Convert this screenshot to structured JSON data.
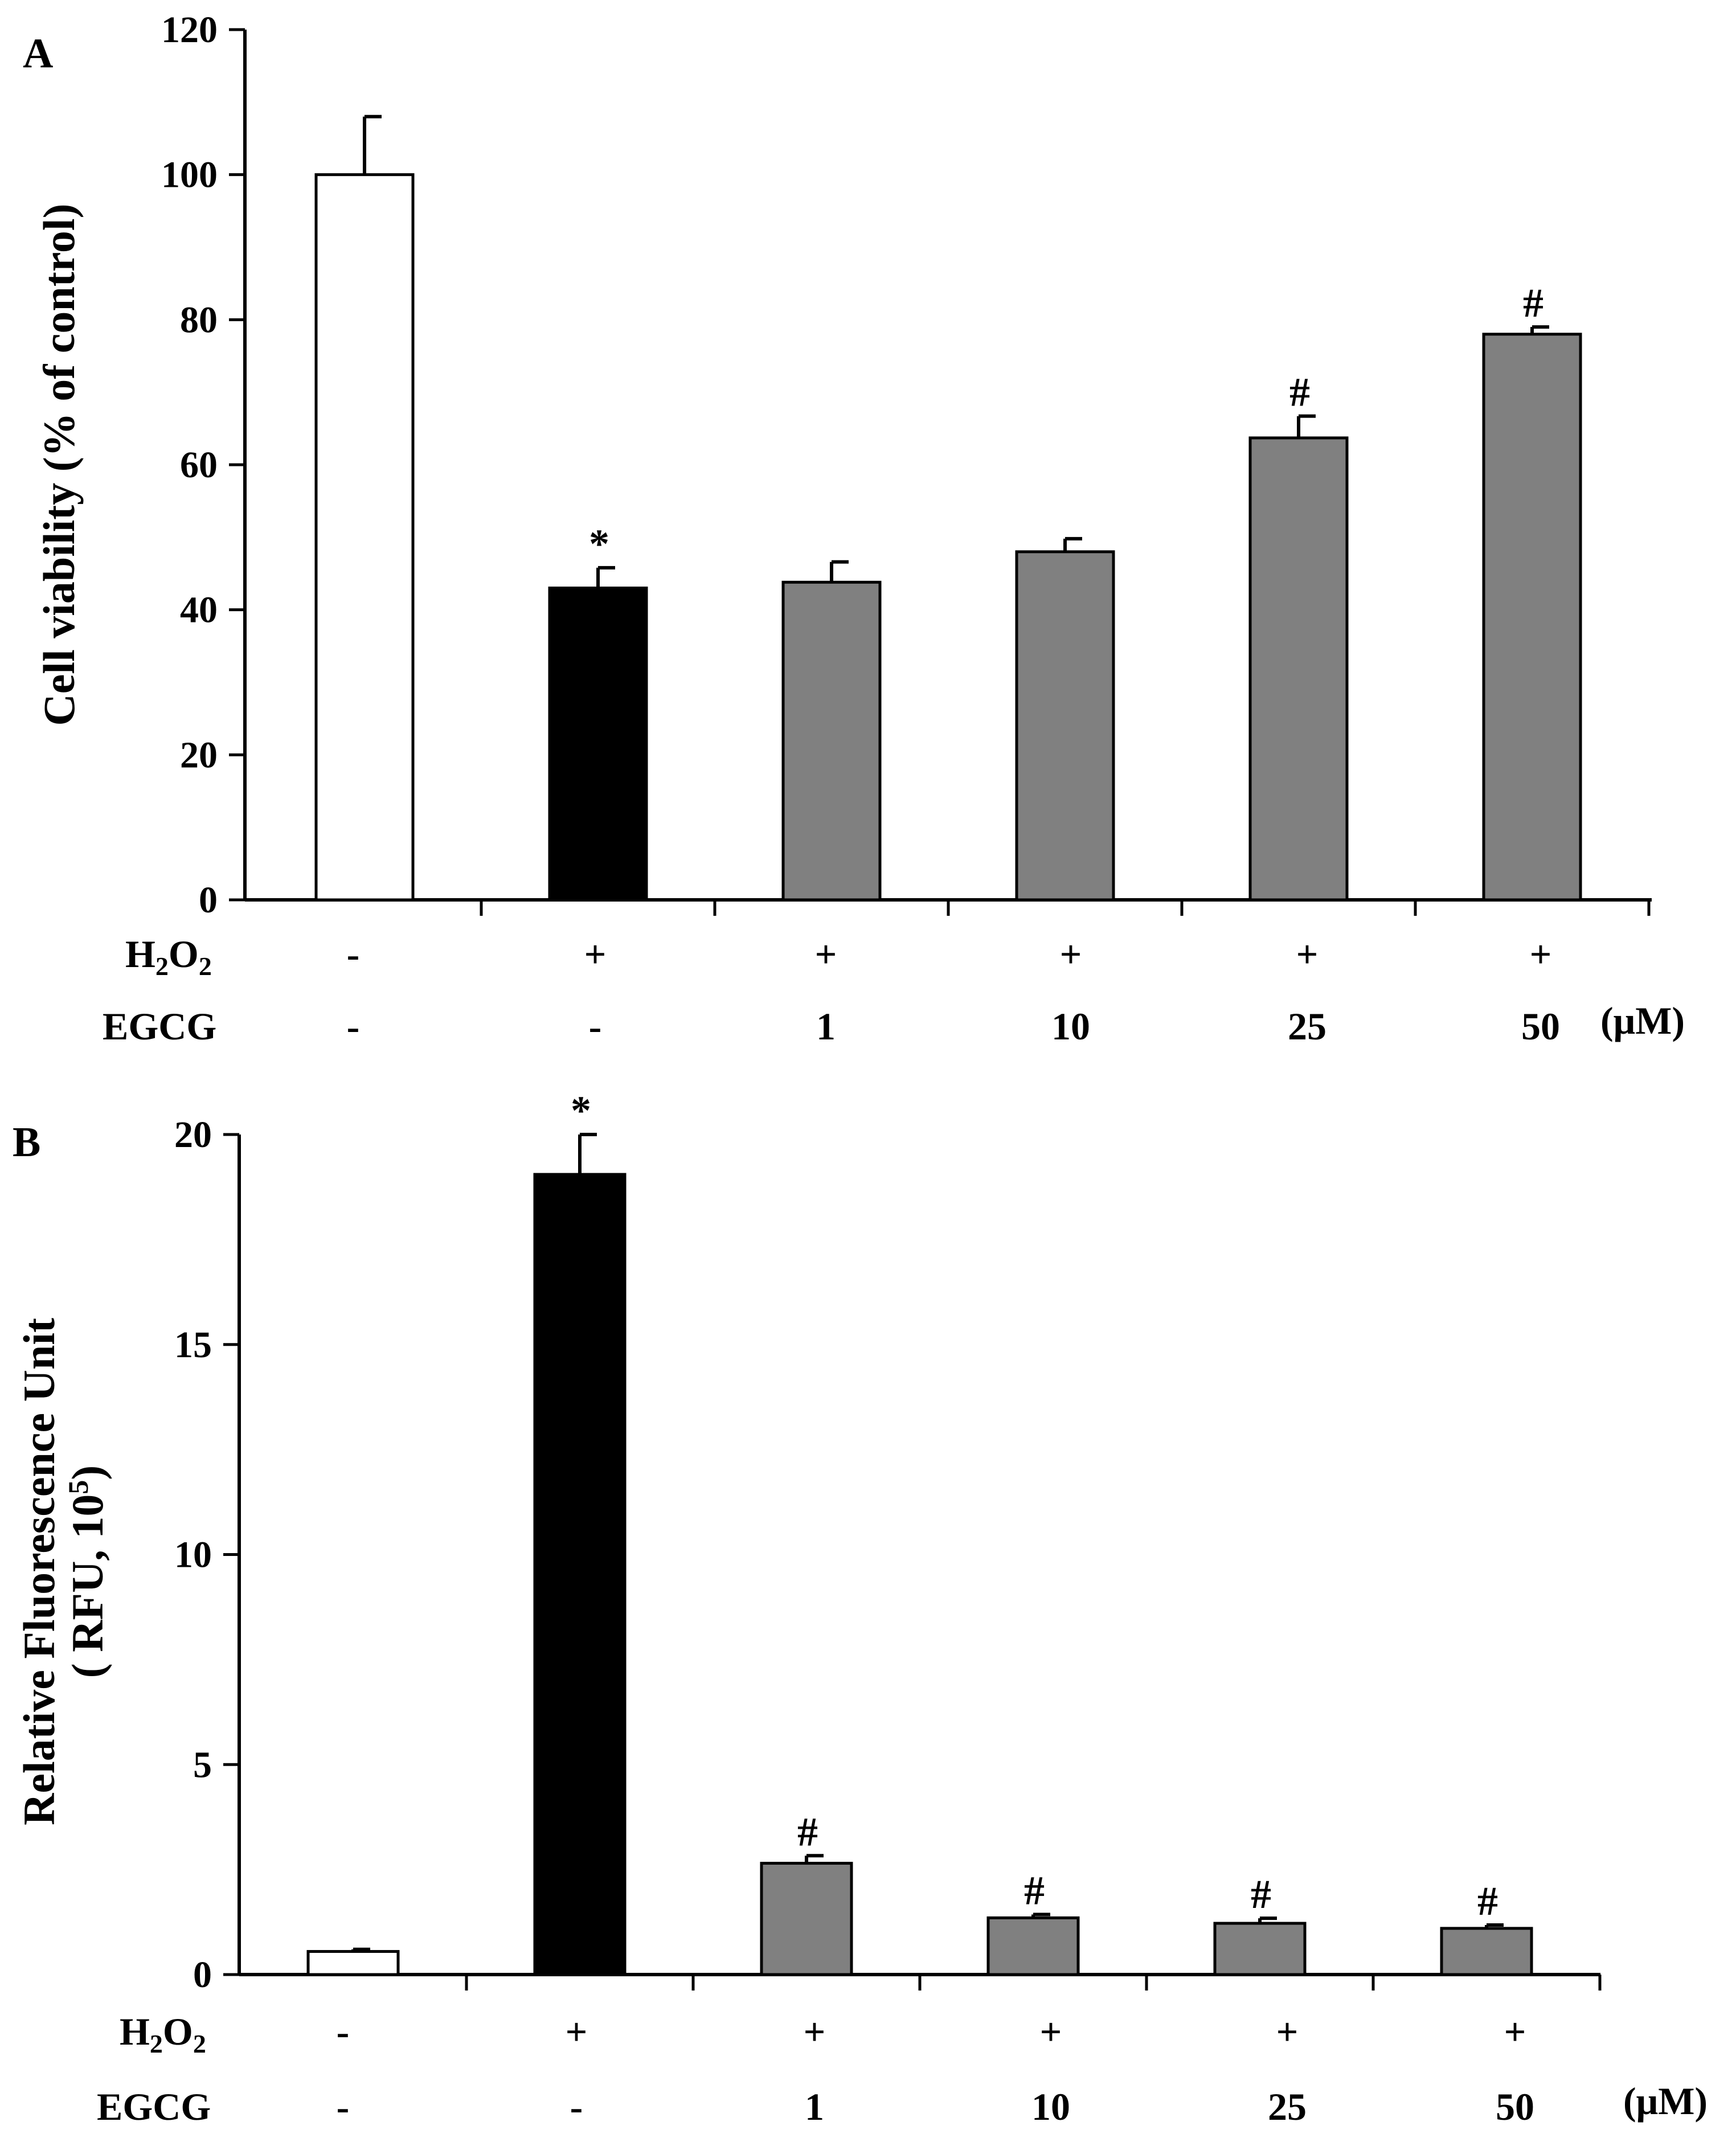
{
  "chart_data": [
    {
      "type": "bar",
      "panel_label": "A",
      "ylabel": "Cell viability (% of control)",
      "ylim": [
        0,
        120
      ],
      "yticks": [
        0,
        20,
        40,
        60,
        80,
        100,
        120
      ],
      "conditions": [
        {
          "label": "H2O2",
          "label_main": "H",
          "label_sub1": "2",
          "label_mid": "O",
          "label_sub2": "2",
          "values": [
            "-",
            "+",
            "+",
            "+",
            "+",
            "+"
          ]
        },
        {
          "label": "EGCG",
          "values": [
            "-",
            "-",
            "1",
            "10",
            "25",
            "50"
          ]
        }
      ],
      "unit_label": "(μM)",
      "values": [
        100,
        43,
        43.8,
        48,
        63.7,
        78
      ],
      "errors": [
        8,
        2.8,
        2.8,
        1.8,
        3,
        1
      ],
      "annotations": [
        "",
        "*",
        "",
        "",
        "#",
        "#"
      ],
      "bar_colors": [
        "#ffffff",
        "#000000",
        "#808080",
        "#808080",
        "#808080",
        "#808080"
      ]
    },
    {
      "type": "bar",
      "panel_label": "B",
      "ylabel_line1": "Relative Fluorescence Unit",
      "ylabel_line2": "( RFU, 10",
      "ylabel_sup": "5",
      "ylabel_close": ")",
      "ylim": [
        0,
        20
      ],
      "yticks": [
        0,
        5,
        10,
        15,
        20
      ],
      "conditions": [
        {
          "label": "H2O2",
          "label_main": "H",
          "label_sub1": "2",
          "label_mid": "O",
          "label_sub2": "2",
          "values": [
            "-",
            "+",
            "+",
            "+",
            "+",
            "+"
          ]
        },
        {
          "label": "EGCG",
          "values": [
            "-",
            "-",
            "1",
            "10",
            "25",
            "50"
          ]
        }
      ],
      "unit_label": "(μM)",
      "values": [
        0.55,
        19.05,
        2.65,
        1.35,
        1.22,
        1.1
      ],
      "errors": [
        0.05,
        0.95,
        0.18,
        0.08,
        0.12,
        0.08
      ],
      "annotations": [
        "",
        "*",
        "#",
        "#",
        "#",
        "#"
      ],
      "bar_colors": [
        "#ffffff",
        "#000000",
        "#808080",
        "#808080",
        "#808080",
        "#808080"
      ]
    }
  ]
}
